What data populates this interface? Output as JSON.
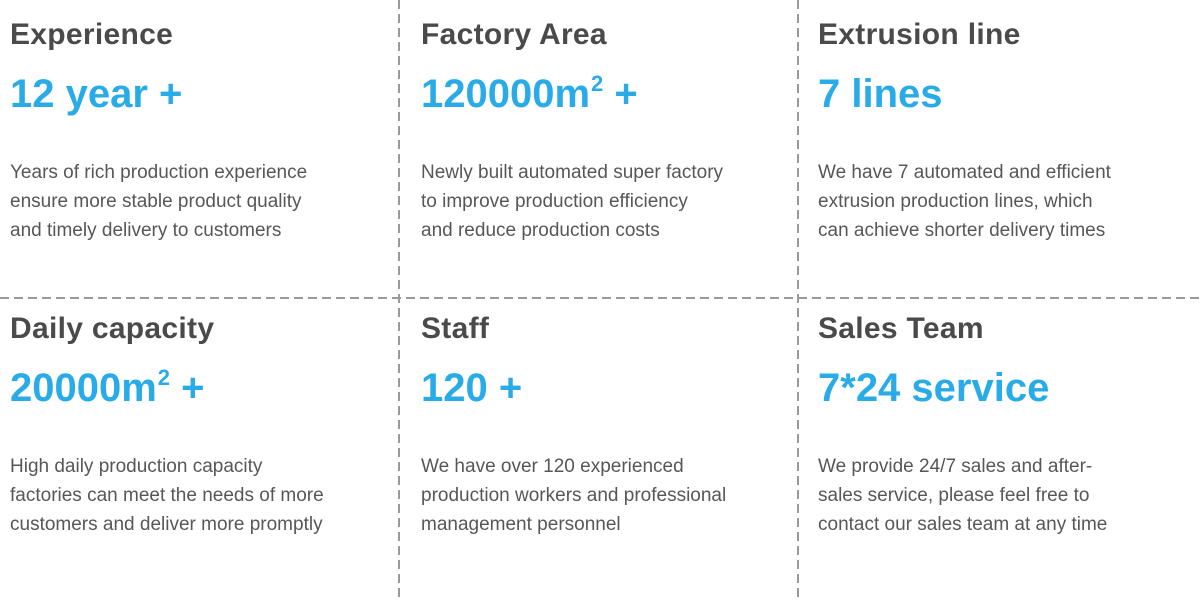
{
  "colors": {
    "accent": "#29abe8",
    "title": "#4a4a4a",
    "description": "#575757",
    "divider": "#9a9a9a",
    "background": "#ffffff"
  },
  "cells": [
    {
      "title": "Experience",
      "value": "12 year +",
      "value_sup": "",
      "value_suffix": "",
      "desc_lines": [
        "Years of rich production experience",
        "ensure more stable product quality",
        "and timely delivery to customers"
      ]
    },
    {
      "title": "Factory Area",
      "value": "120000m",
      "value_sup": "2",
      "value_suffix": " +",
      "desc_lines": [
        "Newly built automated super factory",
        "to improve production efficiency",
        "and reduce production costs"
      ]
    },
    {
      "title": "Extrusion line",
      "value": "7 lines",
      "value_sup": "",
      "value_suffix": "",
      "desc_lines": [
        "We have 7 automated and efficient",
        "extrusion production lines, which",
        "can achieve shorter delivery times"
      ]
    },
    {
      "title": "Daily capacity",
      "value": "20000m",
      "value_sup": "2",
      "value_suffix": " +",
      "desc_lines": [
        "High daily production capacity",
        "factories can meet the needs of more",
        "customers and deliver more promptly"
      ]
    },
    {
      "title": "Staff",
      "value": "120 +",
      "value_sup": "",
      "value_suffix": "",
      "desc_lines": [
        "We have over 120 experienced",
        "production workers and professional",
        "management personnel"
      ]
    },
    {
      "title": "Sales Team",
      "value": "7*24 service",
      "value_sup": "",
      "value_suffix": "",
      "desc_lines": [
        "We provide 24/7 sales and after-",
        "sales service, please feel free to",
        "contact our sales team at any time"
      ]
    }
  ]
}
